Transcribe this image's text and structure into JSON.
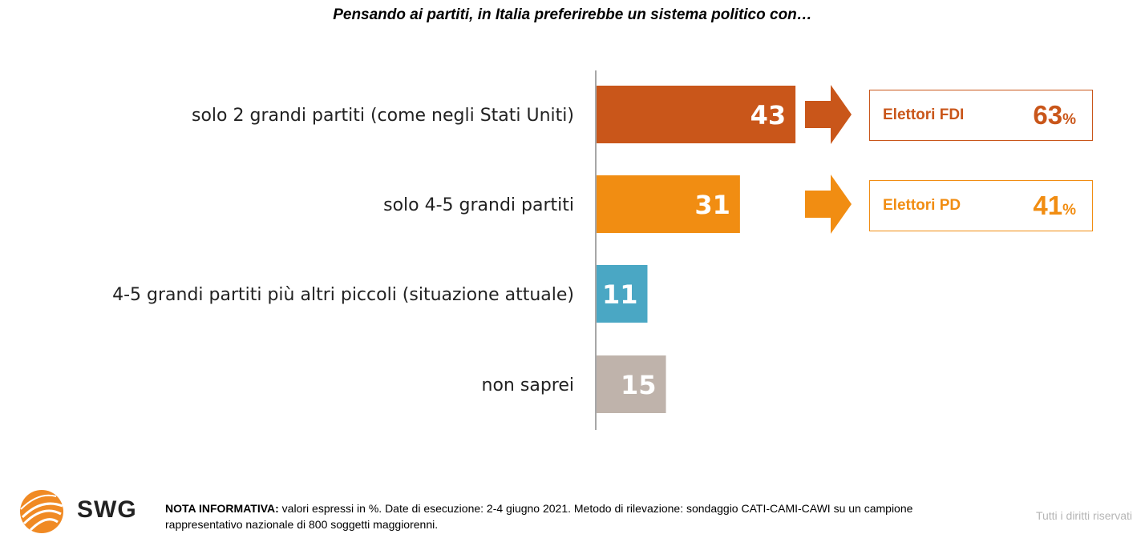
{
  "title": "Pensando ai partiti, in Italia preferirebbe un sistema politico con…",
  "chart_data": {
    "type": "bar",
    "orientation": "horizontal",
    "categories": [
      "solo 2 grandi partiti (come negli Stati Uniti)",
      "solo 4-5 grandi partiti",
      "4-5 grandi partiti più altri piccoli (situazione attuale)",
      "non saprei"
    ],
    "values": [
      43,
      31,
      11,
      15
    ],
    "colors": [
      "#c9561a",
      "#f18d12",
      "#4aa7c4",
      "#bfb3ab"
    ],
    "title": "Pensando ai partiti, in Italia preferirebbe un sistema politico con…",
    "xlim": [
      0,
      100
    ]
  },
  "callouts": [
    {
      "label": "Elettori FDI",
      "value": "63",
      "unit": "%",
      "color": "#c9561a"
    },
    {
      "label": "Elettori PD",
      "value": "41",
      "unit": "%",
      "color": "#f18d12"
    }
  ],
  "footer": {
    "note_label": "NOTA INFORMATIVA:",
    "note_text": " valori espressi in %. Date di esecuzione: 2-4 giugno 2021. Metodo di rilevazione: sondaggio CATI-CAMI-CAWI su un campione rappresentativo nazionale di 800 soggetti maggiorenni.",
    "rights": "Tutti i diritti riservati",
    "brand": "SWG"
  }
}
